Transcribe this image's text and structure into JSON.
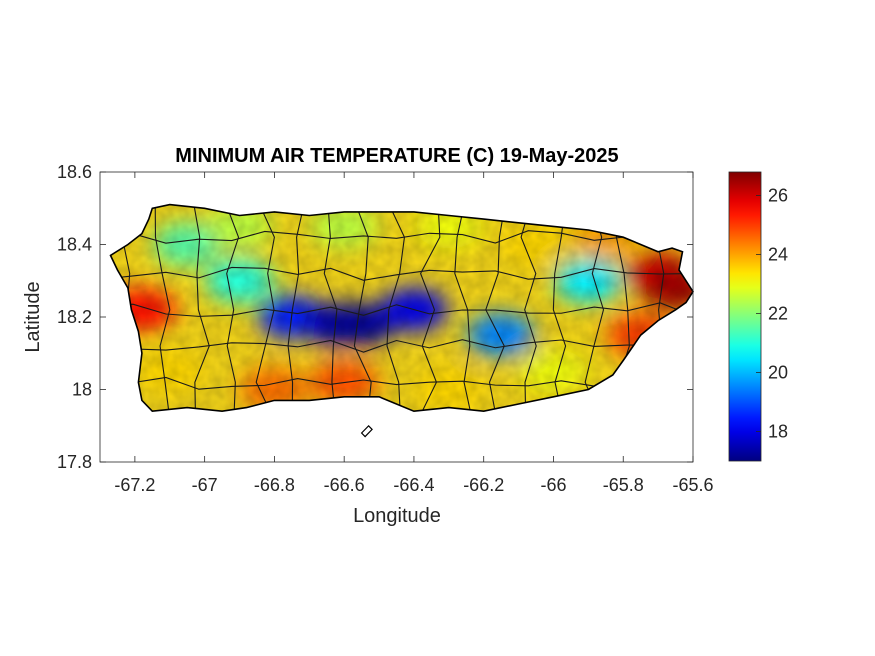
{
  "chart_data": {
    "type": "heatmap",
    "title": "MINIMUM AIR TEMPERATURE (C) 19-May-2025",
    "xlabel": "Longitude",
    "ylabel": "Latitude",
    "xlim": [
      -67.3,
      -65.6
    ],
    "ylim": [
      17.8,
      18.6
    ],
    "xticks": [
      -67.2,
      -67,
      -66.8,
      -66.6,
      -66.4,
      -66.2,
      -66,
      -65.8,
      -65.6
    ],
    "xtick_labels": [
      "-67.2",
      "-67",
      "-66.8",
      "-66.6",
      "-66.4",
      "-66.2",
      "-66",
      "-65.8",
      "-65.6"
    ],
    "yticks": [
      17.8,
      18,
      18.2,
      18.4,
      18.6
    ],
    "ytick_labels": [
      "17.8",
      "18",
      "18.2",
      "18.4",
      "18.6"
    ],
    "colorbar": {
      "colormap": "jet",
      "clim": [
        17.0,
        26.8
      ],
      "ticks": [
        18,
        20,
        22,
        24,
        26
      ],
      "tick_labels": [
        "18",
        "20",
        "22",
        "24",
        "26"
      ]
    },
    "grid": false,
    "region": "Puerto Rico (municipality boundaries)",
    "coastline": [
      [
        -67.27,
        18.37
      ],
      [
        -67.22,
        18.4
      ],
      [
        -67.18,
        18.43
      ],
      [
        -67.16,
        18.47
      ],
      [
        -67.15,
        18.5
      ],
      [
        -67.1,
        18.51
      ],
      [
        -67.0,
        18.5
      ],
      [
        -66.9,
        18.48
      ],
      [
        -66.8,
        18.49
      ],
      [
        -66.7,
        18.48
      ],
      [
        -66.6,
        18.49
      ],
      [
        -66.5,
        18.49
      ],
      [
        -66.4,
        18.49
      ],
      [
        -66.3,
        18.48
      ],
      [
        -66.2,
        18.47
      ],
      [
        -66.1,
        18.46
      ],
      [
        -66.0,
        18.45
      ],
      [
        -65.9,
        18.44
      ],
      [
        -65.8,
        18.42
      ],
      [
        -65.75,
        18.4
      ],
      [
        -65.7,
        18.38
      ],
      [
        -65.66,
        18.39
      ],
      [
        -65.63,
        18.38
      ],
      [
        -65.64,
        18.33
      ],
      [
        -65.6,
        18.27
      ],
      [
        -65.62,
        18.24
      ],
      [
        -65.65,
        18.22
      ],
      [
        -65.7,
        18.19
      ],
      [
        -65.75,
        18.15
      ],
      [
        -65.8,
        18.08
      ],
      [
        -65.83,
        18.04
      ],
      [
        -65.9,
        18.0
      ],
      [
        -66.0,
        17.98
      ],
      [
        -66.1,
        17.96
      ],
      [
        -66.2,
        17.94
      ],
      [
        -66.3,
        17.95
      ],
      [
        -66.4,
        17.94
      ],
      [
        -66.5,
        17.98
      ],
      [
        -66.6,
        17.98
      ],
      [
        -66.7,
        17.97
      ],
      [
        -66.8,
        17.97
      ],
      [
        -66.88,
        17.95
      ],
      [
        -66.95,
        17.94
      ],
      [
        -67.05,
        17.95
      ],
      [
        -67.15,
        17.94
      ],
      [
        -67.18,
        17.97
      ],
      [
        -67.19,
        18.02
      ],
      [
        -67.18,
        18.1
      ],
      [
        -67.19,
        18.16
      ],
      [
        -67.21,
        18.22
      ],
      [
        -67.22,
        18.28
      ],
      [
        -67.25,
        18.33
      ],
      [
        -67.27,
        18.37
      ]
    ],
    "islets": [
      [
        [
          -66.55,
          17.88
        ],
        [
          -66.53,
          17.9
        ],
        [
          -66.52,
          17.89
        ],
        [
          -66.54,
          17.87
        ]
      ]
    ],
    "temperature_field": [
      {
        "lon": -67.18,
        "lat": 18.22,
        "value": 25.5
      },
      {
        "lon": -67.1,
        "lat": 18.05,
        "value": 23.5
      },
      {
        "lon": -67.05,
        "lat": 18.4,
        "value": 21.5
      },
      {
        "lon": -66.9,
        "lat": 18.3,
        "value": 21.0
      },
      {
        "lon": -66.9,
        "lat": 18.45,
        "value": 22.5
      },
      {
        "lon": -66.75,
        "lat": 18.2,
        "value": 18.5
      },
      {
        "lon": -66.8,
        "lat": 18.0,
        "value": 24.5
      },
      {
        "lon": -66.62,
        "lat": 18.18,
        "value": 17.5
      },
      {
        "lon": -66.55,
        "lat": 18.18,
        "value": 17.2
      },
      {
        "lon": -66.6,
        "lat": 18.02,
        "value": 24.8
      },
      {
        "lon": -66.6,
        "lat": 18.45,
        "value": 22.5
      },
      {
        "lon": -66.4,
        "lat": 18.22,
        "value": 18.0
      },
      {
        "lon": -66.3,
        "lat": 18.45,
        "value": 23.0
      },
      {
        "lon": -66.3,
        "lat": 18.0,
        "value": 23.5
      },
      {
        "lon": -66.15,
        "lat": 18.15,
        "value": 19.5
      },
      {
        "lon": -66.05,
        "lat": 18.4,
        "value": 23.5
      },
      {
        "lon": -66.0,
        "lat": 18.05,
        "value": 23.0
      },
      {
        "lon": -65.9,
        "lat": 18.3,
        "value": 20.5
      },
      {
        "lon": -65.85,
        "lat": 18.42,
        "value": 24.0
      },
      {
        "lon": -65.7,
        "lat": 18.32,
        "value": 26.0
      },
      {
        "lon": -65.65,
        "lat": 18.28,
        "value": 26.5
      },
      {
        "lon": -65.75,
        "lat": 18.15,
        "value": 25.0
      }
    ]
  }
}
